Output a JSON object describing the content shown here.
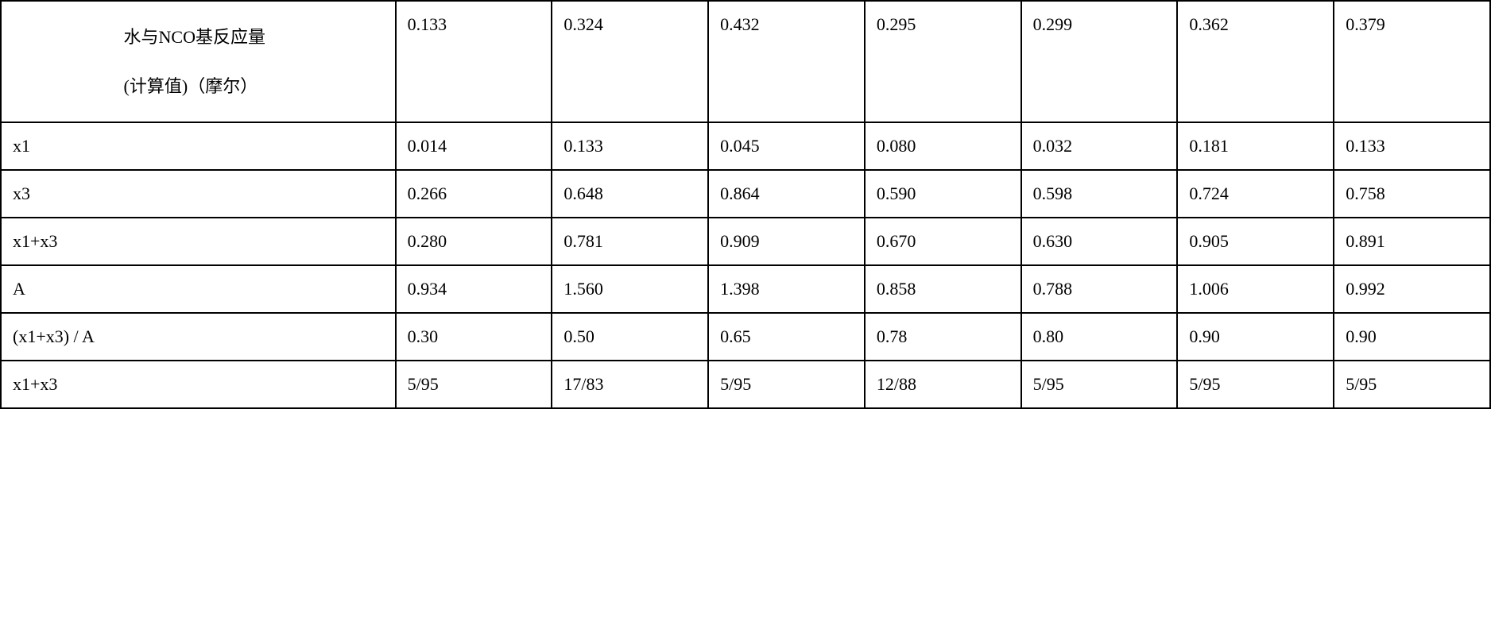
{
  "table": {
    "columns_count": 7,
    "rows": [
      {
        "split_first_cell": true,
        "label": "水与NCO基反应量\n(计算值)（摩尔）",
        "values": [
          "0.133",
          "0.324",
          "0.432",
          "0.295",
          "0.299",
          "0.362",
          "0.379"
        ]
      },
      {
        "label": "x1",
        "values": [
          "0.014",
          "0.133",
          "0.045",
          "0.080",
          "0.032",
          "0.181",
          "0.133"
        ]
      },
      {
        "label": "x3",
        "values": [
          "0.266",
          "0.648",
          "0.864",
          "0.590",
          "0.598",
          "0.724",
          "0.758"
        ]
      },
      {
        "label": "x1+x3",
        "values": [
          "0.280",
          "0.781",
          "0.909",
          "0.670",
          "0.630",
          "0.905",
          "0.891"
        ]
      },
      {
        "label": "A",
        "values": [
          "0.934",
          "1.560",
          "1.398",
          "0.858",
          "0.788",
          "1.006",
          "0.992"
        ]
      },
      {
        "label": "(x1+x3) / A",
        "values": [
          "0.30",
          "0.50",
          "0.65",
          "0.78",
          "0.80",
          "0.90",
          "0.90"
        ]
      },
      {
        "label": "x1+x3",
        "values": [
          "5/95",
          "17/83",
          "5/95",
          "12/88",
          "5/95",
          "5/95",
          "5/95"
        ]
      }
    ],
    "border_color": "#000000",
    "background_color": "#ffffff",
    "text_color": "#000000",
    "font_size_pt": 16
  }
}
